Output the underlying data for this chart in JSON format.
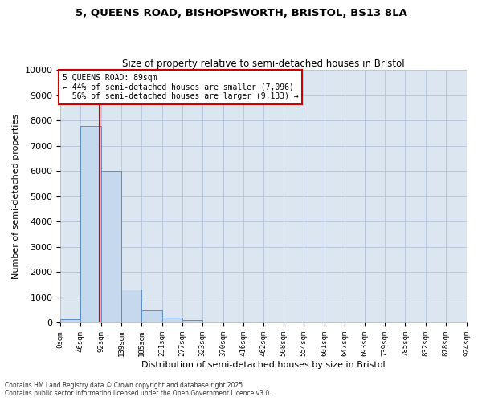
{
  "title1": "5, QUEENS ROAD, BISHOPSWORTH, BRISTOL, BS13 8LA",
  "title2": "Size of property relative to semi-detached houses in Bristol",
  "xlabel": "Distribution of semi-detached houses by size in Bristol",
  "ylabel": "Number of semi-detached properties",
  "property_size": 89,
  "property_label": "5 QUEENS ROAD: 89sqm",
  "pct_smaller": 44,
  "pct_larger": 56,
  "n_smaller": 7096,
  "n_larger": 9133,
  "bin_edges": [
    0,
    46,
    92,
    139,
    185,
    231,
    277,
    323,
    370,
    416,
    462,
    508,
    554,
    601,
    647,
    693,
    739,
    785,
    832,
    878,
    924
  ],
  "bin_labels": [
    "0sqm",
    "46sqm",
    "92sqm",
    "139sqm",
    "185sqm",
    "231sqm",
    "277sqm",
    "323sqm",
    "370sqm",
    "416sqm",
    "462sqm",
    "508sqm",
    "554sqm",
    "601sqm",
    "647sqm",
    "693sqm",
    "739sqm",
    "785sqm",
    "832sqm",
    "878sqm",
    "924sqm"
  ],
  "bar_heights": [
    150,
    7800,
    6000,
    1300,
    500,
    200,
    100,
    50,
    0,
    0,
    0,
    0,
    0,
    0,
    0,
    0,
    0,
    0,
    0,
    0
  ],
  "bar_color": "#c5d8ee",
  "bar_edge_color": "#5b8ec4",
  "bar_linewidth": 0.7,
  "grid_color": "#b8c8dc",
  "bg_color": "#dce6f1",
  "vline_color": "#cc0000",
  "box_edge_color": "#cc0000",
  "ylim": [
    0,
    10000
  ],
  "yticks": [
    0,
    1000,
    2000,
    3000,
    4000,
    5000,
    6000,
    7000,
    8000,
    9000,
    10000
  ],
  "footer1": "Contains HM Land Registry data © Crown copyright and database right 2025.",
  "footer2": "Contains public sector information licensed under the Open Government Licence v3.0."
}
